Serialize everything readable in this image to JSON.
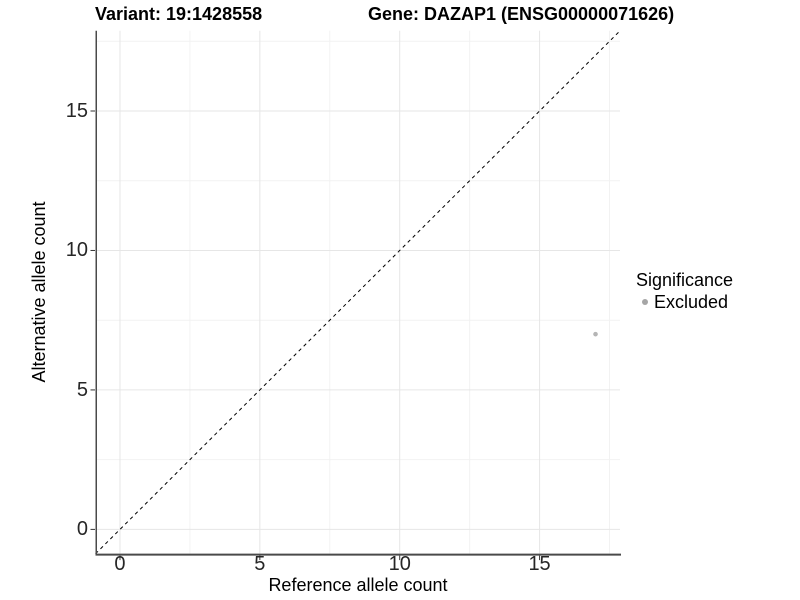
{
  "figure": {
    "title_left": "Variant: 19:1428558",
    "title_right": "Gene: DAZAP1 (ENSG00000071626)"
  },
  "chart_data": {
    "type": "scatter",
    "xlabel": "Reference allele count",
    "ylabel": "Alternative allele count",
    "xlim": [
      -0.875,
      17.875
    ],
    "ylim": [
      -0.875,
      17.875
    ],
    "xticks": [
      0,
      5,
      10,
      15
    ],
    "yticks": [
      0,
      5,
      10,
      15
    ],
    "x_minor_ticks": [
      2.5,
      7.5,
      12.5,
      17.5
    ],
    "y_minor_ticks": [
      2.5,
      7.5,
      12.5,
      17.5
    ],
    "grid": "major+minor",
    "points": [
      {
        "x": 17,
        "y": 7,
        "series": "Excluded"
      }
    ],
    "series_colors": {
      "Excluded": "#b5b5b5"
    },
    "identity_line": {
      "slope": 1,
      "intercept": 0,
      "style": "dashed",
      "color": "#000000"
    },
    "legend": {
      "title": "Significance",
      "position": "right",
      "items": [
        {
          "label": "Excluded",
          "color": "#a6a6a6"
        }
      ]
    },
    "colors": {
      "grid_major": "#e6e6e6",
      "grid_minor": "#f2f2f2",
      "axis_line": "#4a4a4a",
      "tick_mark": "#333333",
      "tick_label": "#262626"
    }
  }
}
